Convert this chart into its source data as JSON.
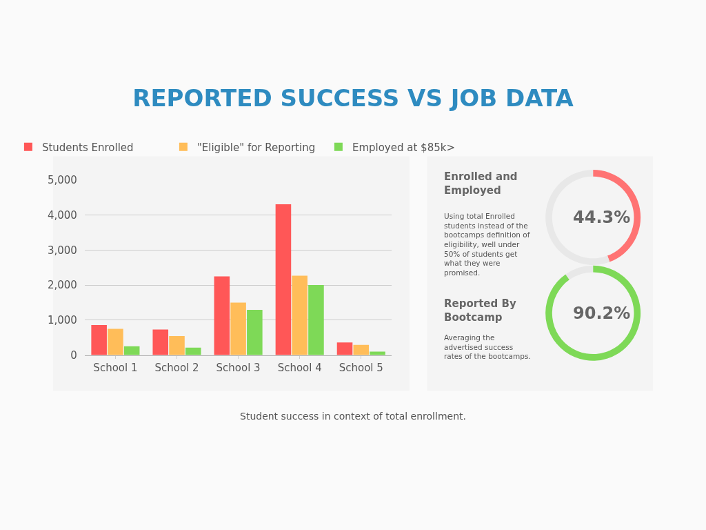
{
  "chart_data": [
    {
      "type": "bar",
      "title": "REPORTED SUCCESS VS JOB DATA",
      "categories": [
        "School 1",
        "School 2",
        "School 3",
        "School 4",
        "School 5"
      ],
      "series": [
        {
          "name": "Students Enrolled",
          "color": "#ff5757",
          "values": [
            860,
            730,
            2250,
            4310,
            360
          ]
        },
        {
          "name": "\"Eligible\" for Reporting",
          "color": "#ffbd59",
          "values": [
            750,
            540,
            1500,
            2270,
            290
          ]
        },
        {
          "name": "Employed at $85k>",
          "color": "#7ed957",
          "values": [
            250,
            210,
            1290,
            2000,
            100
          ]
        }
      ],
      "ylim": [
        0,
        5000
      ],
      "yticks": [
        0,
        {
          "value": 1000,
          "label": "1,000"
        },
        {
          "value": 2000,
          "label": "2,000"
        },
        {
          "value": 3000,
          "label": "3,000"
        },
        {
          "value": 4000,
          "label": "4,000"
        },
        {
          "value": 5000,
          "label": "5,000"
        }
      ],
      "grid": "y",
      "legend": "top",
      "annotations": [
        "Student success in context of total enrollment."
      ]
    },
    {
      "type": "donut",
      "title": "Enrolled and Employed",
      "categories": [
        null,
        null
      ],
      "values": [
        44.3,
        55.7
      ],
      "colors": [
        "#ff7373",
        "#e8e8e8"
      ],
      "value_labels": [
        "44.3%",
        null
      ],
      "annotations": [
        "Using total Enrolled students instead of the bootcamps definition of eligibility, well under 50% of students get what they were promised."
      ]
    },
    {
      "type": "donut",
      "title": "Reported By Bootcamp",
      "categories": [
        null,
        null
      ],
      "values": [
        90.2,
        9.8
      ],
      "colors": [
        "#7ed957",
        "#e8e8e8"
      ],
      "value_labels": [
        "90.2%",
        null
      ],
      "annotations": [
        "Averaging the advertised success rates of the bootcamps."
      ]
    }
  ]
}
